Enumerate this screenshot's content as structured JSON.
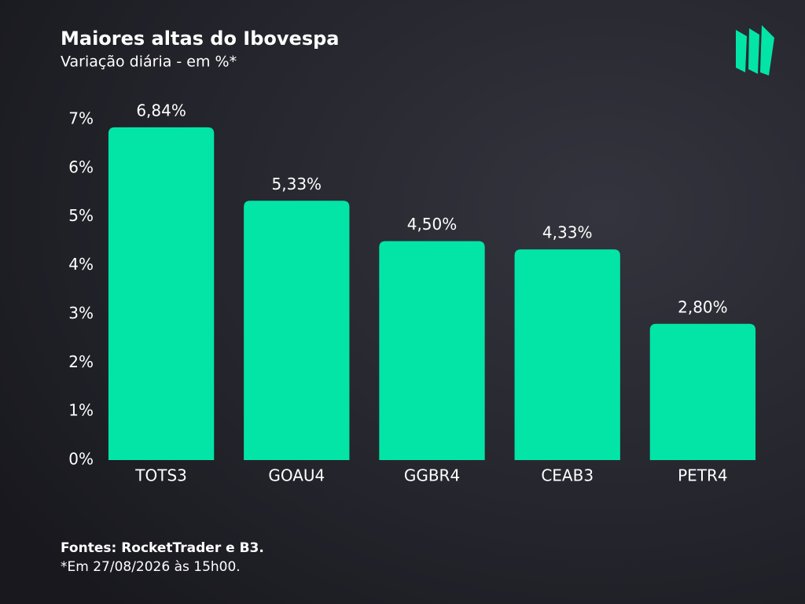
{
  "chart_data": {
    "type": "bar",
    "title": "Maiores altas do Ibovespa",
    "subtitle": "Variação diária - em %*",
    "categories": [
      "TOTS3",
      "GOAU4",
      "GGBR4",
      "CEAB3",
      "PETR4"
    ],
    "values": [
      6.84,
      5.33,
      4.5,
      4.33,
      2.8
    ],
    "value_labels": [
      "6,84%",
      "5,33%",
      "4,50%",
      "4,33%",
      "2,80%"
    ],
    "color": "#02e5a6",
    "ylim": [
      0,
      7
    ],
    "yticks": [
      {
        "value": 0,
        "label": "0%"
      },
      {
        "value": 1,
        "label": "1%"
      },
      {
        "value": 2,
        "label": "2%"
      },
      {
        "value": 3,
        "label": "3%"
      },
      {
        "value": 4,
        "label": "4%"
      },
      {
        "value": 5,
        "label": "5%"
      },
      {
        "value": 6,
        "label": "6%"
      },
      {
        "value": 7,
        "label": "7%"
      }
    ],
    "grid": false,
    "source": "Fontes: RocketTrader e B3.",
    "note": "*Em 27/08/2026 às 15h00."
  }
}
